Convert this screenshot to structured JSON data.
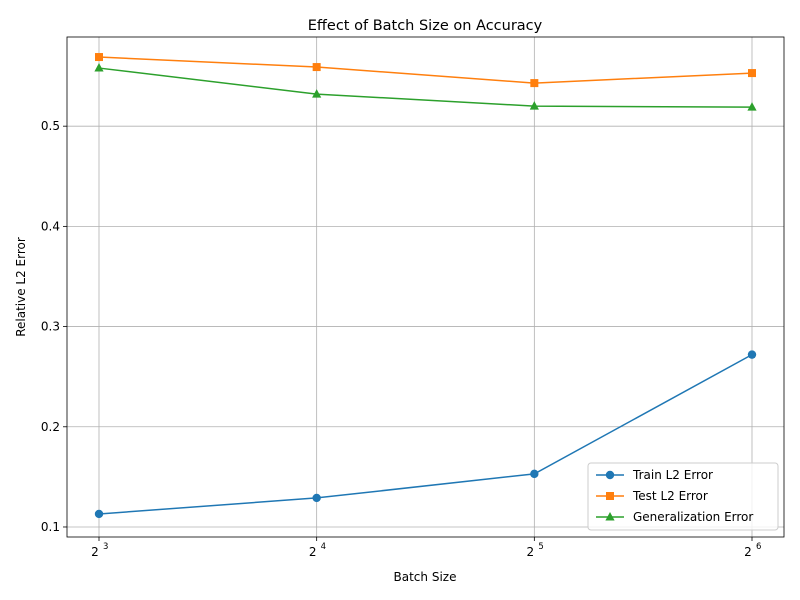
{
  "chart_data": {
    "type": "line",
    "title": "Effect of Batch Size on Accuracy",
    "xlabel": "Batch Size",
    "ylabel": "Relative L2 Error",
    "x_scale": "log2",
    "x": [
      8,
      16,
      32,
      64
    ],
    "x_tick_base": "2",
    "x_tick_exponents": [
      "3",
      "4",
      "5",
      "6"
    ],
    "y_ticks": [
      "0.1",
      "0.2",
      "0.3",
      "0.4",
      "0.5"
    ],
    "ylim": [
      0.09,
      0.589
    ],
    "grid": true,
    "legend_position": "lower-right",
    "series": [
      {
        "name": "Train L2 Error",
        "color": "#1f77b4",
        "marker": "circle",
        "values": [
          0.113,
          0.129,
          0.153,
          0.272
        ]
      },
      {
        "name": "Test L2 Error",
        "color": "#ff7f0e",
        "marker": "square",
        "values": [
          0.569,
          0.559,
          0.543,
          0.553
        ]
      },
      {
        "name": "Generalization Error",
        "color": "#2ca02c",
        "marker": "triangle",
        "values": [
          0.558,
          0.532,
          0.52,
          0.519
        ]
      }
    ]
  }
}
